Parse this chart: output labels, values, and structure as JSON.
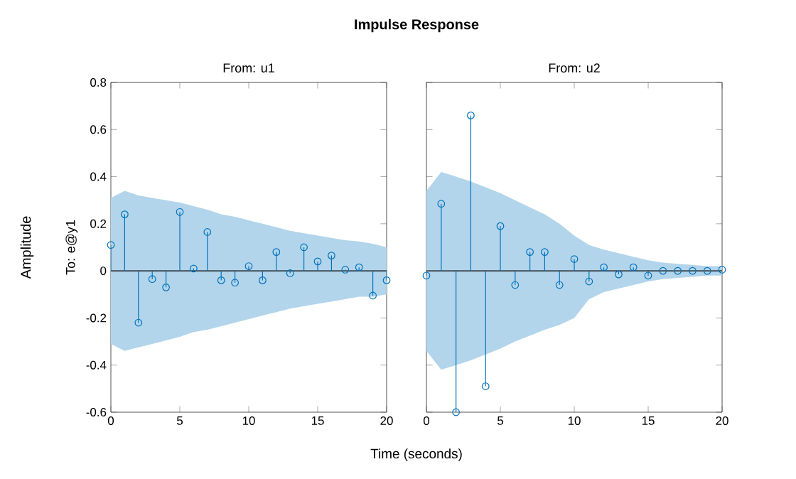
{
  "chart_data": [
    {
      "type": "lollipop",
      "title": "Impulse Response",
      "subtitle": "From: u1",
      "xlabel": "Time (seconds)",
      "ylabel": "To: e@y1",
      "annotations": [
        "Amplitude"
      ],
      "x": [
        0,
        1,
        2,
        3,
        4,
        5,
        6,
        7,
        8,
        9,
        10,
        11,
        12,
        13,
        14,
        15,
        16,
        17,
        18,
        19,
        20
      ],
      "series": [
        {
          "color": "#0072bd",
          "values": [
            0.11,
            0.24,
            -0.22,
            -0.035,
            -0.07,
            0.25,
            0.01,
            0.165,
            -0.04,
            -0.05,
            0.02,
            -0.04,
            0.08,
            -0.01,
            0.1,
            0.04,
            0.065,
            0.005,
            0.015,
            -0.105,
            -0.04
          ],
          "upper": [
            0.31,
            0.34,
            0.32,
            0.31,
            0.3,
            0.29,
            0.275,
            0.26,
            0.24,
            0.23,
            0.215,
            0.2,
            0.185,
            0.17,
            0.16,
            0.15,
            0.14,
            0.13,
            0.125,
            0.115,
            0.1
          ],
          "lower": [
            -0.31,
            -0.34,
            -0.325,
            -0.31,
            -0.295,
            -0.28,
            -0.26,
            -0.25,
            -0.235,
            -0.22,
            -0.205,
            -0.19,
            -0.175,
            -0.16,
            -0.15,
            -0.14,
            -0.13,
            -0.12,
            -0.11,
            -0.11,
            -0.1
          ]
        }
      ],
      "ref_lines": [
        {
          "axis": "y",
          "value": 0,
          "color": "#000000"
        }
      ],
      "xlim": [
        0,
        20
      ],
      "ylim": [
        -0.6,
        0.8
      ],
      "xticks": [
        0,
        5,
        10,
        15,
        20
      ],
      "yticks": [
        -0.6,
        -0.4,
        -0.2,
        0,
        0.2,
        0.4,
        0.6,
        0.8
      ],
      "marker": "circle"
    },
    {
      "type": "lollipop",
      "subtitle": "From: u2",
      "x": [
        0,
        1,
        2,
        3,
        4,
        5,
        6,
        7,
        8,
        9,
        10,
        11,
        12,
        13,
        14,
        15,
        16,
        17,
        18,
        19,
        20
      ],
      "series": [
        {
          "color": "#0072bd",
          "values": [
            -0.02,
            0.285,
            -0.6,
            0.66,
            -0.49,
            0.19,
            -0.06,
            0.08,
            0.08,
            -0.06,
            0.05,
            -0.045,
            0.015,
            -0.015,
            0.015,
            -0.02,
            0,
            0,
            0,
            0,
            0.005
          ],
          "upper": [
            0.34,
            0.42,
            0.4,
            0.38,
            0.355,
            0.33,
            0.3,
            0.27,
            0.24,
            0.2,
            0.15,
            0.11,
            0.09,
            0.075,
            0.06,
            0.045,
            0.035,
            0.03,
            0.025,
            0.02,
            0.02
          ],
          "lower": [
            -0.34,
            -0.42,
            -0.4,
            -0.38,
            -0.355,
            -0.33,
            -0.3,
            -0.275,
            -0.25,
            -0.23,
            -0.2,
            -0.12,
            -0.09,
            -0.075,
            -0.06,
            -0.045,
            -0.035,
            -0.03,
            -0.025,
            -0.02,
            -0.02
          ]
        }
      ],
      "ref_lines": [
        {
          "axis": "y",
          "value": 0,
          "color": "#000000"
        }
      ],
      "xlim": [
        0,
        20
      ],
      "ylim": [
        -0.6,
        0.8
      ],
      "xticks": [
        0,
        5,
        10,
        15,
        20
      ],
      "yticks": [
        -0.6,
        -0.4,
        -0.2,
        0,
        0.2,
        0.4,
        0.6,
        0.8
      ],
      "marker": "circle",
      "tick_labels": "x"
    }
  ]
}
